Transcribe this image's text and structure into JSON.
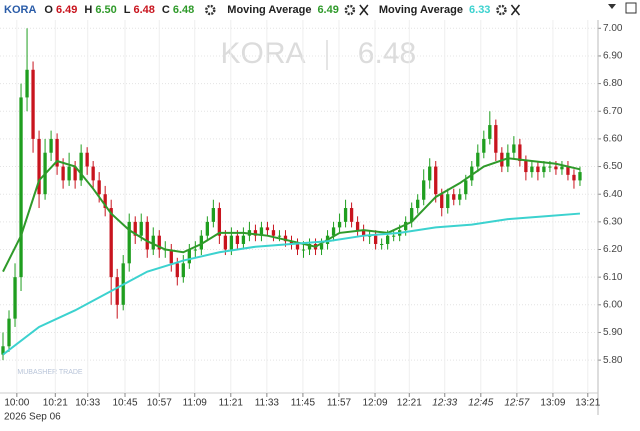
{
  "header": {
    "symbol": "KORA",
    "fields": [
      {
        "key": "O",
        "value": "6.49"
      },
      {
        "key": "H",
        "value": "6.50"
      },
      {
        "key": "L",
        "value": "6.48"
      },
      {
        "key": "C",
        "value": "6.48"
      }
    ],
    "indicators": [
      {
        "name": "Moving Average",
        "value": "6.49"
      },
      {
        "name": "Moving Average",
        "value": "6.33"
      }
    ]
  },
  "watermark": {
    "symbol": "KORA",
    "price": "6.48",
    "brand": "MUBASHER TRADE"
  },
  "chart_data": {
    "type": "candlestick",
    "date_label": "2026 Sep 06",
    "up_color": "#1f9e1f",
    "down_color": "#c8141e",
    "grid": true,
    "xlim": [
      -0.5,
      99
    ],
    "ylim": [
      5.71,
      7.03
    ],
    "xticks": [
      {
        "value": 2.3,
        "label": "10:00"
      },
      {
        "value": 8.7,
        "label": "10:21"
      },
      {
        "value": 14.1,
        "label": "10:33"
      },
      {
        "value": 20.3,
        "label": "10:45"
      },
      {
        "value": 26,
        "label": "10:57"
      },
      {
        "value": 31.9,
        "label": "11:09"
      },
      {
        "value": 37.9,
        "label": "11:21"
      },
      {
        "value": 43.9,
        "label": "11:33"
      },
      {
        "value": 49.9,
        "label": "11:45"
      },
      {
        "value": 55.9,
        "label": "11:57"
      },
      {
        "value": 61.9,
        "label": "12:09"
      },
      {
        "value": 67.6,
        "label": "12:21"
      },
      {
        "value": 73.5,
        "label": "12:33"
      },
      {
        "value": 79.5,
        "label": "12:45"
      },
      {
        "value": 85.5,
        "label": "12:57"
      },
      {
        "value": 91.5,
        "label": "13:09"
      },
      {
        "value": 97.3,
        "label": "13:21"
      }
    ],
    "yticks": [
      {
        "value": 5.8,
        "label": "5.80"
      },
      {
        "value": 5.9,
        "label": "5.90"
      },
      {
        "value": 6,
        "label": "6.00"
      },
      {
        "value": 6.1,
        "label": "6.10"
      },
      {
        "value": 6.2,
        "label": "6.20"
      },
      {
        "value": 6.3,
        "label": "6.30"
      },
      {
        "value": 6.4,
        "label": "6.40"
      },
      {
        "value": 6.5,
        "label": "6.50"
      },
      {
        "value": 6.6,
        "label": "6.60"
      },
      {
        "value": 6.7,
        "label": "6.70"
      },
      {
        "value": 6.8,
        "label": "6.80"
      },
      {
        "value": 6.9,
        "label": "6.90"
      },
      {
        "value": 7,
        "label": "7.00"
      }
    ],
    "x": [
      0,
      1,
      2,
      3,
      4,
      5,
      6,
      7,
      8,
      9,
      10,
      11,
      12,
      13,
      14,
      15,
      16,
      17,
      18,
      19,
      20,
      21,
      22,
      23,
      24,
      25,
      26,
      27,
      28,
      29,
      30,
      31,
      32,
      33,
      34,
      35,
      36,
      37,
      38,
      39,
      40,
      41,
      42,
      43,
      44,
      45,
      46,
      47,
      48,
      49,
      50,
      51,
      52,
      53,
      54,
      55,
      56,
      57,
      58,
      59,
      60,
      61,
      62,
      63,
      64,
      65,
      66,
      67,
      68,
      69,
      70,
      71,
      72,
      73,
      74,
      75,
      76,
      77,
      78,
      79,
      80,
      81,
      82,
      83,
      84,
      85,
      86,
      87,
      88,
      89,
      90,
      91,
      92,
      93,
      94,
      95,
      96
    ],
    "open": [
      5.82,
      5.85,
      5.95,
      6.1,
      6.75,
      6.85,
      6.6,
      6.4,
      6.55,
      6.6,
      6.5,
      6.45,
      6.5,
      6.45,
      6.55,
      6.5,
      6.45,
      6.4,
      6.35,
      6.1,
      6.0,
      6.15,
      6.3,
      6.25,
      6.3,
      6.2,
      6.25,
      6.2,
      6.2,
      6.15,
      6.1,
      6.15,
      6.2,
      6.2,
      6.25,
      6.3,
      6.35,
      6.25,
      6.2,
      6.25,
      6.22,
      6.25,
      6.27,
      6.25,
      6.28,
      6.27,
      6.25,
      6.25,
      6.23,
      6.22,
      6.2,
      6.2,
      6.22,
      6.2,
      6.22,
      6.25,
      6.28,
      6.3,
      6.35,
      6.3,
      6.27,
      6.25,
      6.25,
      6.22,
      6.22,
      6.25,
      6.25,
      6.27,
      6.3,
      6.35,
      6.38,
      6.45,
      6.5,
      6.4,
      6.35,
      6.4,
      6.38,
      6.4,
      6.45,
      6.5,
      6.55,
      6.6,
      6.65,
      6.55,
      6.5,
      6.55,
      6.58,
      6.52,
      6.48,
      6.5,
      6.48,
      6.5,
      6.5,
      6.49,
      6.5,
      6.47,
      6.45
    ],
    "high": [
      5.9,
      5.98,
      6.15,
      6.8,
      7.0,
      6.88,
      6.63,
      6.6,
      6.63,
      6.62,
      6.53,
      6.55,
      6.52,
      6.58,
      6.57,
      6.52,
      6.48,
      6.43,
      6.38,
      6.13,
      6.18,
      6.33,
      6.32,
      6.33,
      6.32,
      6.28,
      6.27,
      6.23,
      6.22,
      6.17,
      6.18,
      6.22,
      6.23,
      6.27,
      6.32,
      6.38,
      6.37,
      6.27,
      6.28,
      6.27,
      6.28,
      6.3,
      6.29,
      6.3,
      6.3,
      6.29,
      6.27,
      6.27,
      6.25,
      6.24,
      6.23,
      6.24,
      6.24,
      6.24,
      6.27,
      6.3,
      6.33,
      6.38,
      6.37,
      6.32,
      6.29,
      6.27,
      6.27,
      6.24,
      6.27,
      6.27,
      6.29,
      6.32,
      6.37,
      6.4,
      6.49,
      6.53,
      6.52,
      6.42,
      6.42,
      6.42,
      6.42,
      6.47,
      6.52,
      6.58,
      6.63,
      6.7,
      6.67,
      6.57,
      6.58,
      6.61,
      6.6,
      6.54,
      6.52,
      6.52,
      6.52,
      6.52,
      6.52,
      6.52,
      6.52,
      6.49,
      6.5
    ],
    "low": [
      5.8,
      5.83,
      5.92,
      6.05,
      6.7,
      6.55,
      6.35,
      6.38,
      6.52,
      6.47,
      6.42,
      6.43,
      6.42,
      6.43,
      6.47,
      6.42,
      6.37,
      6.32,
      6.0,
      5.95,
      5.98,
      6.12,
      6.22,
      6.23,
      6.17,
      6.18,
      6.17,
      6.17,
      6.12,
      6.07,
      6.08,
      6.13,
      6.17,
      6.18,
      6.23,
      6.28,
      6.22,
      6.18,
      6.18,
      6.2,
      6.2,
      6.23,
      6.23,
      6.23,
      6.25,
      6.23,
      6.23,
      6.21,
      6.2,
      6.18,
      6.17,
      6.18,
      6.18,
      6.18,
      6.2,
      6.23,
      6.26,
      6.28,
      6.28,
      6.25,
      6.23,
      6.22,
      6.2,
      6.2,
      6.2,
      6.23,
      6.23,
      6.25,
      6.28,
      6.33,
      6.36,
      6.42,
      6.37,
      6.32,
      6.33,
      6.36,
      6.36,
      6.38,
      6.43,
      6.48,
      6.53,
      6.58,
      6.52,
      6.48,
      6.48,
      6.53,
      6.5,
      6.45,
      6.46,
      6.45,
      6.46,
      6.48,
      6.47,
      6.47,
      6.45,
      6.42,
      6.43
    ],
    "close": [
      5.85,
      5.95,
      6.1,
      6.75,
      6.85,
      6.6,
      6.4,
      6.55,
      6.6,
      6.5,
      6.45,
      6.5,
      6.45,
      6.55,
      6.5,
      6.45,
      6.4,
      6.35,
      6.1,
      6.0,
      6.15,
      6.3,
      6.25,
      6.3,
      6.2,
      6.25,
      6.2,
      6.2,
      6.15,
      6.1,
      6.15,
      6.2,
      6.2,
      6.25,
      6.3,
      6.35,
      6.25,
      6.2,
      6.25,
      6.22,
      6.25,
      6.27,
      6.25,
      6.28,
      6.27,
      6.25,
      6.25,
      6.23,
      6.22,
      6.2,
      6.2,
      6.22,
      6.2,
      6.22,
      6.25,
      6.28,
      6.3,
      6.35,
      6.3,
      6.27,
      6.25,
      6.25,
      6.22,
      6.22,
      6.25,
      6.25,
      6.27,
      6.3,
      6.35,
      6.38,
      6.45,
      6.5,
      6.4,
      6.35,
      6.4,
      6.38,
      6.4,
      6.45,
      6.5,
      6.55,
      6.6,
      6.65,
      6.55,
      6.5,
      6.55,
      6.58,
      6.52,
      6.48,
      6.5,
      6.48,
      6.5,
      6.5,
      6.49,
      6.5,
      6.47,
      6.45,
      6.48
    ],
    "overlays": [
      {
        "color": "#2f9a2a",
        "x": [
          0,
          3,
          6,
          9,
          12,
          15,
          18,
          21,
          24,
          27,
          30,
          33,
          36,
          40,
          44,
          48,
          52,
          56,
          60,
          64,
          68,
          72,
          76,
          80,
          84,
          88,
          92,
          96
        ],
        "values": [
          6.12,
          6.25,
          6.45,
          6.52,
          6.5,
          6.42,
          6.33,
          6.27,
          6.23,
          6.2,
          6.19,
          6.22,
          6.26,
          6.26,
          6.25,
          6.23,
          6.21,
          6.26,
          6.27,
          6.26,
          6.3,
          6.39,
          6.44,
          6.5,
          6.53,
          6.52,
          6.51,
          6.49
        ]
      },
      {
        "color": "#3cd2cf",
        "x": [
          0,
          6,
          12,
          18,
          24,
          30,
          36,
          42,
          48,
          54,
          60,
          66,
          72,
          78,
          84,
          90,
          96
        ],
        "values": [
          5.82,
          5.92,
          5.98,
          6.05,
          6.12,
          6.16,
          6.19,
          6.21,
          6.22,
          6.23,
          6.25,
          6.26,
          6.28,
          6.29,
          6.31,
          6.32,
          6.33
        ]
      }
    ]
  }
}
